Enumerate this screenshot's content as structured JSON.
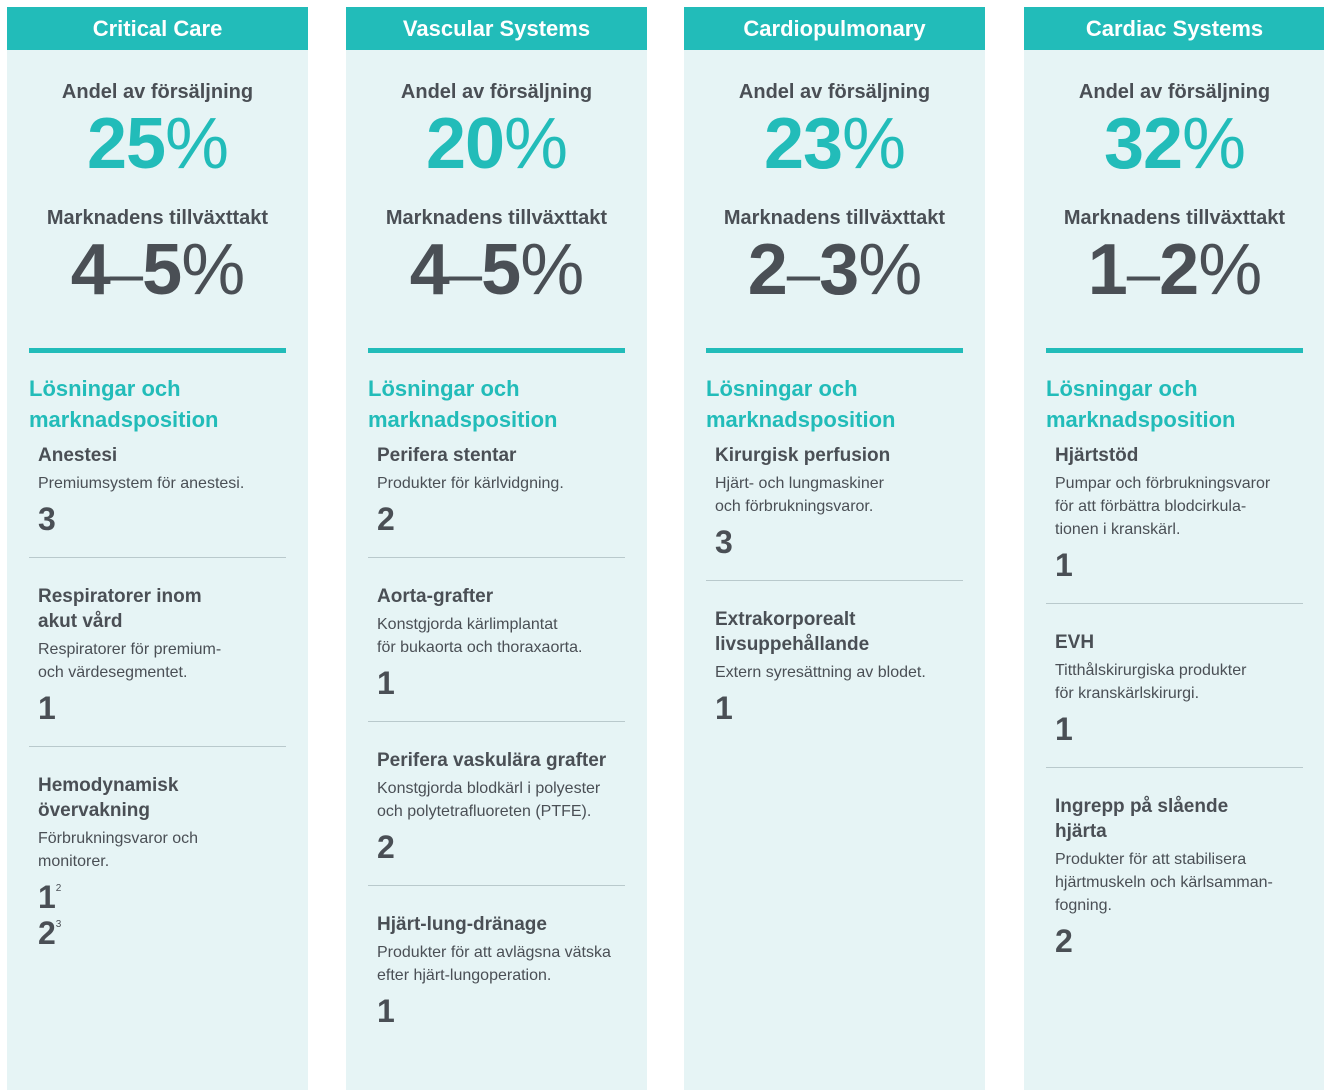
{
  "columns": [
    {
      "title": "Critical Care",
      "share_label": "Andel av försäljning",
      "share": {
        "number": "25",
        "unit": "%"
      },
      "growth_label": "Marknadens tillväxttakt",
      "growth": {
        "low": "4",
        "sep": "–",
        "high": "5",
        "unit": "%"
      },
      "section_title": [
        "Lösningar och",
        "marknadsposition"
      ],
      "items": [
        {
          "name": [
            "Anestesi"
          ],
          "description": [
            "Premiumsystem för anestesi."
          ],
          "ranks": [
            {
              "value": "3"
            }
          ]
        },
        {
          "name": [
            "Respiratorer inom",
            "akut vård"
          ],
          "description": [
            "Respiratorer för premium-",
            "och värdesegmentet."
          ],
          "ranks": [
            {
              "value": "1"
            }
          ]
        },
        {
          "name": [
            "Hemodynamisk",
            "övervakning"
          ],
          "description": [
            "Förbrukningsvaror och",
            "monitorer."
          ],
          "ranks": [
            {
              "value": "1",
              "note": "2"
            },
            {
              "value": "2",
              "note": "3"
            }
          ]
        }
      ]
    },
    {
      "title": "Vascular Systems",
      "share_label": "Andel av försäljning",
      "share": {
        "number": "20",
        "unit": "%"
      },
      "growth_label": "Marknadens tillväxttakt",
      "growth": {
        "low": "4",
        "sep": "–",
        "high": "5",
        "unit": "%"
      },
      "section_title": [
        "Lösningar och",
        "marknadsposition"
      ],
      "items": [
        {
          "name": [
            "Perifera stentar"
          ],
          "description": [
            "Produkter för kärlvidgning."
          ],
          "ranks": [
            {
              "value": "2"
            }
          ]
        },
        {
          "name": [
            "Aorta-grafter"
          ],
          "description": [
            "Konstgjorda kärlimplantat",
            "för bukaorta och thoraxaorta."
          ],
          "ranks": [
            {
              "value": "1"
            }
          ]
        },
        {
          "name": [
            "Perifera vaskulära grafter"
          ],
          "description": [
            "Konstgjorda blodkärl i polyester",
            "och polytetrafluoreten (PTFE)."
          ],
          "ranks": [
            {
              "value": "2"
            }
          ]
        },
        {
          "name": [
            "Hjärt-lung-dränage"
          ],
          "description": [
            "Produkter för att avlägsna vätska",
            "efter hjärt-lungoperation."
          ],
          "ranks": [
            {
              "value": "1"
            }
          ]
        }
      ]
    },
    {
      "title": "Cardiopulmonary",
      "share_label": "Andel av försäljning",
      "share": {
        "number": "23",
        "unit": "%"
      },
      "growth_label": "Marknadens tillväxttakt",
      "growth": {
        "low": "2",
        "sep": "–",
        "high": "3",
        "unit": "%"
      },
      "section_title": [
        "Lösningar och",
        "marknadsposition"
      ],
      "items": [
        {
          "name": [
            "Kirurgisk perfusion"
          ],
          "description": [
            "Hjärt- och lungmaskiner",
            "och förbrukningsvaror."
          ],
          "ranks": [
            {
              "value": "3"
            }
          ]
        },
        {
          "name": [
            "Extrakorporealt",
            "livsuppehållande"
          ],
          "description": [
            "Extern syresättning  av blodet."
          ],
          "ranks": [
            {
              "value": "1"
            }
          ]
        }
      ]
    },
    {
      "title": "Cardiac Systems",
      "share_label": "Andel av försäljning",
      "share": {
        "number": "32",
        "unit": "%"
      },
      "growth_label": "Marknadens tillväxttakt",
      "growth": {
        "low": "1",
        "sep": "–",
        "high": "2",
        "unit": "%"
      },
      "section_title": [
        "Lösningar och",
        "marknadsposition"
      ],
      "items": [
        {
          "name": [
            "Hjärtstöd"
          ],
          "description": [
            "Pumpar och förbrukningsvaror",
            "för att förbättra blodcirkula-",
            "tionen i kranskärl."
          ],
          "ranks": [
            {
              "value": "1"
            }
          ]
        },
        {
          "name": [
            "EVH"
          ],
          "description": [
            "Titthålskirurgiska produkter",
            "för kranskärlskirurgi."
          ],
          "ranks": [
            {
              "value": "1"
            }
          ]
        },
        {
          "name": [
            "Ingrepp på slående",
            "hjärta"
          ],
          "description": [
            "Produkter för att stabilisera",
            "hjärtmuskeln och kärlsamman-",
            "fogning."
          ],
          "ranks": [
            {
              "value": "2"
            }
          ]
        }
      ]
    }
  ]
}
